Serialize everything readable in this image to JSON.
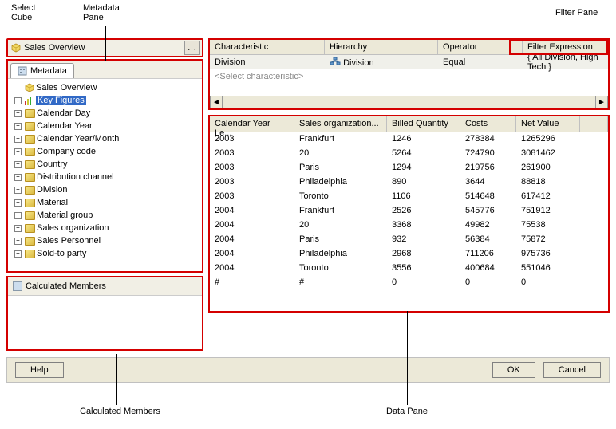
{
  "annotations": {
    "selectCube": "Select\nCube",
    "metadataPane": "Metadata\nPane",
    "filterPane": "Filter Pane",
    "calcMembers": "Calculated Members",
    "dataPane": "Data Pane"
  },
  "selectCube": {
    "label": "Sales Overview",
    "btn": "..."
  },
  "metadata": {
    "tab": "Metadata",
    "root": "Sales Overview",
    "keyFigures": "Key Figures",
    "dims": [
      "Calendar Day",
      "Calendar Year",
      "Calendar Year/Month",
      "Company code",
      "Country",
      "Distribution channel",
      "Division",
      "Material",
      "Material group",
      "Sales organization",
      "Sales Personnel",
      "Sold-to party"
    ]
  },
  "calculated": {
    "title": "Calculated Members"
  },
  "filter": {
    "headers": {
      "c1": "Characteristic",
      "c2": "Hierarchy",
      "c3": "Operator",
      "c4": "Filter Expression"
    },
    "row": {
      "c1": "Division",
      "c2": "Division",
      "c3": "Equal",
      "c4": "{ All Division, High Tech }"
    },
    "placeholder": "<Select characteristic>"
  },
  "data": {
    "headers": {
      "c1": "Calendar Year Le...",
      "c2": "Sales organization...",
      "c3": "Billed Quantity",
      "c4": "Costs",
      "c5": "Net Value"
    },
    "rows": [
      [
        "2003",
        "Frankfurt",
        "1246",
        "278384",
        "1265296"
      ],
      [
        "2003",
        "20",
        "5264",
        "724790",
        "3081462"
      ],
      [
        "2003",
        "Paris",
        "1294",
        "219756",
        "261900"
      ],
      [
        "2003",
        "Philadelphia",
        "890",
        "3644",
        "88818"
      ],
      [
        "2003",
        "Toronto",
        "1106",
        "514648",
        "617412"
      ],
      [
        "2004",
        "Frankfurt",
        "2526",
        "545776",
        "751912"
      ],
      [
        "2004",
        "20",
        "3368",
        "49982",
        "75538"
      ],
      [
        "2004",
        "Paris",
        "932",
        "56384",
        "75872"
      ],
      [
        "2004",
        "Philadelphia",
        "2968",
        "711206",
        "975736"
      ],
      [
        "2004",
        "Toronto",
        "3556",
        "400684",
        "551046"
      ],
      [
        "#",
        "#",
        "0",
        "0",
        "0"
      ]
    ]
  },
  "buttons": {
    "help": "Help",
    "ok": "OK",
    "cancel": "Cancel"
  }
}
